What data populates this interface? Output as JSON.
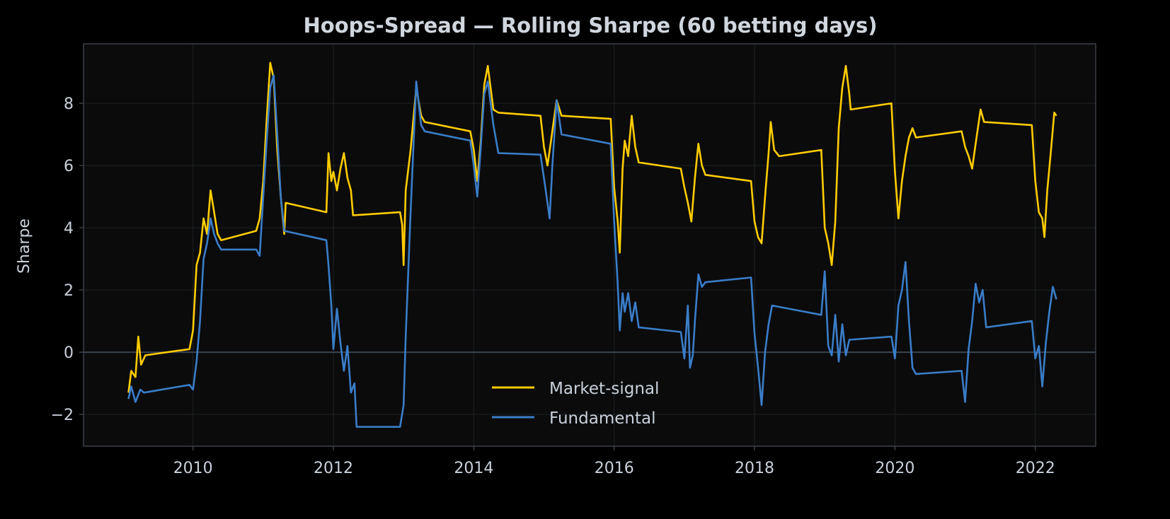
{
  "chart_data": {
    "type": "line",
    "title": "Hoops-Spread — Rolling Sharpe (60 betting days)",
    "xlabel": "",
    "ylabel": "Sharpe",
    "xlim": [
      2008.44,
      2022.86
    ],
    "ylim": [
      -3.02,
      9.91
    ],
    "xticks": [
      2010,
      2012,
      2014,
      2016,
      2018,
      2020,
      2022
    ],
    "yticks": [
      -2,
      0,
      2,
      4,
      6,
      8
    ],
    "ytick_labels": [
      "−2",
      "0",
      "2",
      "4",
      "6",
      "8"
    ],
    "grid": true,
    "zero_line": true,
    "legend_position": "bottom-center",
    "background": "#0b0b0b",
    "series": [
      {
        "name": "Market-signal",
        "color": "#ffcc00",
        "x": [
          2009.08,
          2009.12,
          2009.18,
          2009.22,
          2009.26,
          2009.32,
          2009.95,
          2010.0,
          2010.05,
          2010.1,
          2010.15,
          2010.2,
          2010.25,
          2010.3,
          2010.35,
          2010.4,
          2010.9,
          2010.95,
          2011.0,
          2011.05,
          2011.1,
          2011.15,
          2011.2,
          2011.25,
          2011.3,
          2011.32,
          2011.9,
          2011.93,
          2011.97,
          2012.0,
          2012.05,
          2012.1,
          2012.15,
          2012.2,
          2012.25,
          2012.28,
          2012.95,
          2012.98,
          2013.0,
          2013.03,
          2013.1,
          2013.18,
          2013.25,
          2013.3,
          2013.95,
          2014.0,
          2014.05,
          2014.1,
          2014.15,
          2014.2,
          2014.28,
          2014.35,
          2014.95,
          2015.0,
          2015.05,
          2015.1,
          2015.18,
          2015.25,
          2015.95,
          2016.0,
          2016.05,
          2016.08,
          2016.12,
          2016.15,
          2016.2,
          2016.25,
          2016.3,
          2016.35,
          2016.95,
          2017.0,
          2017.05,
          2017.1,
          2017.15,
          2017.2,
          2017.25,
          2017.3,
          2017.95,
          2018.0,
          2018.05,
          2018.1,
          2018.15,
          2018.2,
          2018.23,
          2018.28,
          2018.35,
          2018.95,
          2019.0,
          2019.05,
          2019.1,
          2019.15,
          2019.2,
          2019.25,
          2019.3,
          2019.35,
          2019.37,
          2019.95,
          2020.0,
          2020.05,
          2020.1,
          2020.15,
          2020.2,
          2020.25,
          2020.3,
          2020.95,
          2021.0,
          2021.05,
          2021.1,
          2021.15,
          2021.22,
          2021.27,
          2021.95,
          2022.0,
          2022.05,
          2022.1,
          2022.13,
          2022.17,
          2022.22,
          2022.27,
          2022.3
        ],
        "y": [
          -1.3,
          -0.6,
          -0.8,
          0.5,
          -0.4,
          -0.1,
          0.1,
          0.7,
          2.8,
          3.2,
          4.3,
          3.8,
          5.2,
          4.5,
          3.8,
          3.6,
          3.9,
          4.3,
          5.5,
          7.5,
          9.3,
          8.8,
          6.5,
          5.0,
          3.8,
          4.8,
          4.5,
          6.4,
          5.5,
          5.8,
          5.2,
          5.9,
          6.4,
          5.6,
          5.2,
          4.4,
          4.5,
          4.1,
          2.8,
          5.2,
          6.5,
          8.5,
          7.6,
          7.4,
          7.1,
          6.5,
          5.5,
          6.8,
          8.6,
          9.2,
          7.8,
          7.7,
          7.6,
          6.6,
          6.0,
          6.8,
          8.1,
          7.6,
          7.5,
          5.3,
          4.2,
          3.2,
          5.9,
          6.8,
          6.3,
          7.6,
          6.6,
          6.1,
          5.9,
          5.3,
          4.8,
          4.2,
          5.6,
          6.7,
          6.0,
          5.7,
          5.5,
          4.2,
          3.7,
          3.5,
          5.0,
          6.4,
          7.4,
          6.5,
          6.3,
          6.5,
          4.0,
          3.5,
          2.8,
          4.2,
          7.2,
          8.5,
          9.2,
          8.3,
          7.8,
          8.0,
          5.8,
          4.3,
          5.5,
          6.3,
          6.9,
          7.2,
          6.9,
          7.1,
          6.6,
          6.3,
          5.9,
          6.7,
          7.8,
          7.4,
          7.3,
          5.5,
          4.5,
          4.3,
          3.7,
          5.2,
          6.4,
          7.7,
          7.6
        ]
      },
      {
        "name": "Fundamental",
        "color": "#3a7dc9",
        "x": [
          2009.08,
          2009.12,
          2009.18,
          2009.25,
          2009.3,
          2009.95,
          2010.0,
          2010.05,
          2010.1,
          2010.15,
          2010.2,
          2010.25,
          2010.3,
          2010.35,
          2010.4,
          2010.9,
          2010.95,
          2011.0,
          2011.05,
          2011.1,
          2011.15,
          2011.2,
          2011.25,
          2011.3,
          2011.9,
          2011.93,
          2011.97,
          2012.0,
          2012.05,
          2012.1,
          2012.15,
          2012.2,
          2012.25,
          2012.3,
          2012.33,
          2012.95,
          2013.0,
          2013.03,
          2013.1,
          2013.18,
          2013.25,
          2013.3,
          2013.95,
          2014.0,
          2014.05,
          2014.1,
          2014.15,
          2014.2,
          2014.28,
          2014.35,
          2014.95,
          2015.0,
          2015.05,
          2015.08,
          2015.12,
          2015.18,
          2015.25,
          2015.95,
          2016.0,
          2016.05,
          2016.08,
          2016.12,
          2016.15,
          2016.2,
          2016.25,
          2016.3,
          2016.35,
          2016.95,
          2017.0,
          2017.05,
          2017.08,
          2017.12,
          2017.15,
          2017.2,
          2017.25,
          2017.3,
          2017.95,
          2018.0,
          2018.05,
          2018.1,
          2018.15,
          2018.2,
          2018.25,
          2018.95,
          2019.0,
          2019.05,
          2019.1,
          2019.15,
          2019.2,
          2019.25,
          2019.3,
          2019.35,
          2019.95,
          2020.0,
          2020.05,
          2020.1,
          2020.15,
          2020.2,
          2020.25,
          2020.3,
          2020.95,
          2021.0,
          2021.05,
          2021.1,
          2021.15,
          2021.2,
          2021.25,
          2021.3,
          2021.95,
          2022.0,
          2022.05,
          2022.1,
          2022.15,
          2022.2,
          2022.25,
          2022.3
        ],
        "y": [
          -1.5,
          -1.1,
          -1.6,
          -1.2,
          -1.3,
          -1.05,
          -1.2,
          -0.3,
          1.0,
          3.0,
          3.5,
          4.3,
          3.8,
          3.5,
          3.3,
          3.3,
          3.1,
          5.0,
          6.8,
          8.5,
          8.9,
          7.0,
          5.0,
          3.9,
          3.6,
          2.8,
          1.5,
          0.1,
          1.4,
          0.3,
          -0.6,
          0.2,
          -1.3,
          -1.0,
          -2.4,
          -2.4,
          -1.7,
          0.5,
          4.5,
          8.7,
          7.3,
          7.1,
          6.8,
          6.0,
          5.0,
          6.6,
          8.3,
          8.7,
          7.3,
          6.4,
          6.35,
          5.6,
          4.8,
          4.3,
          6.0,
          8.1,
          7.0,
          6.7,
          4.2,
          2.2,
          0.7,
          1.9,
          1.3,
          1.9,
          1.0,
          1.6,
          0.8,
          0.65,
          -0.2,
          1.5,
          -0.5,
          -0.1,
          1.0,
          2.5,
          2.1,
          2.25,
          2.4,
          0.6,
          -0.5,
          -1.7,
          0.0,
          0.9,
          1.5,
          1.2,
          2.6,
          0.2,
          -0.1,
          1.2,
          -0.3,
          0.9,
          -0.1,
          0.4,
          0.5,
          -0.2,
          1.5,
          2.0,
          2.9,
          1.0,
          -0.5,
          -0.7,
          -0.6,
          -1.6,
          0.1,
          1.0,
          2.2,
          1.6,
          2.0,
          0.8,
          1.0,
          -0.2,
          0.2,
          -1.1,
          0.3,
          1.3,
          2.1,
          1.7
        ]
      }
    ]
  }
}
